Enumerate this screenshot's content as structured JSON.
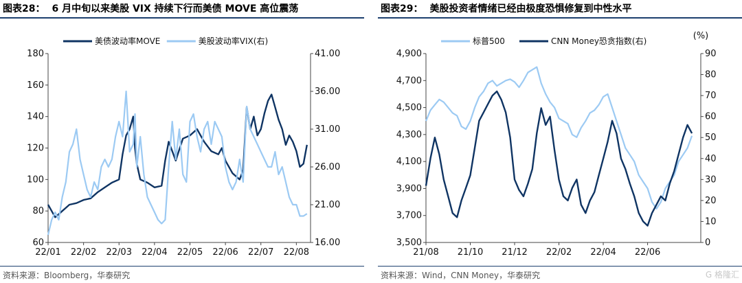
{
  "left": {
    "title_num": "图表28：",
    "title_text": "6 月中旬以来美股 VIX 持续下行而美债 MOVE 高位震荡",
    "source": "资料来源：Bloomberg，华泰研究",
    "chart_data": {
      "type": "line",
      "legend_position": "top",
      "grid": false,
      "xlabel": "",
      "ylabel": "",
      "x_ticks": [
        "22/01",
        "22/02",
        "22/03",
        "22/04",
        "22/05",
        "22/06",
        "22/07",
        "22/08"
      ],
      "left_y_ticks": [
        "60",
        "80",
        "100",
        "120",
        "140",
        "160",
        "180"
      ],
      "right_y_ticks": [
        "16.00",
        "21.00",
        "26.00",
        "31.00",
        "36.00",
        "41.00"
      ],
      "left_ylim": [
        60,
        180
      ],
      "right_ylim": [
        16,
        41
      ],
      "series": [
        {
          "name": "美债波动率MOVE",
          "axis": "left",
          "color": "#0f3463",
          "x": [
            0,
            0.1,
            0.2,
            0.3,
            0.4,
            0.5,
            0.6,
            0.8,
            1.0,
            1.2,
            1.4,
            1.6,
            1.8,
            2.0,
            2.1,
            2.2,
            2.3,
            2.4,
            2.45,
            2.5,
            2.6,
            2.8,
            3.0,
            3.2,
            3.3,
            3.4,
            3.5,
            3.6,
            3.8,
            4.0,
            4.2,
            4.4,
            4.6,
            4.8,
            4.9,
            5.0,
            5.2,
            5.4,
            5.5,
            5.6,
            5.7,
            5.8,
            5.9,
            6.0,
            6.1,
            6.2,
            6.3,
            6.4,
            6.5,
            6.6,
            6.7,
            6.8,
            6.9,
            7.0,
            7.1,
            7.2,
            7.3
          ],
          "values": [
            84,
            80,
            76,
            78,
            80,
            82,
            84,
            85,
            87,
            88,
            92,
            95,
            98,
            100,
            116,
            128,
            132,
            140,
            120,
            110,
            100,
            98,
            95,
            96,
            112,
            124,
            118,
            112,
            126,
            128,
            132,
            124,
            118,
            116,
            120,
            112,
            104,
            100,
            106,
            146,
            132,
            140,
            128,
            132,
            142,
            150,
            154,
            146,
            138,
            132,
            122,
            128,
            124,
            118,
            108,
            110,
            122
          ]
        },
        {
          "name": "美股波动率VIX(右)",
          "axis": "right",
          "color": "#9ccaf3",
          "x": [
            0,
            0.1,
            0.2,
            0.3,
            0.4,
            0.5,
            0.6,
            0.7,
            0.8,
            0.9,
            1.0,
            1.1,
            1.2,
            1.3,
            1.4,
            1.5,
            1.6,
            1.7,
            1.8,
            1.9,
            2.0,
            2.1,
            2.2,
            2.3,
            2.4,
            2.45,
            2.5,
            2.6,
            2.7,
            2.8,
            2.9,
            3.0,
            3.1,
            3.2,
            3.3,
            3.4,
            3.5,
            3.6,
            3.7,
            3.8,
            3.9,
            4.0,
            4.1,
            4.2,
            4.3,
            4.4,
            4.5,
            4.6,
            4.7,
            4.8,
            4.9,
            5.0,
            5.1,
            5.2,
            5.3,
            5.4,
            5.5,
            5.6,
            5.7,
            5.8,
            5.9,
            6.0,
            6.1,
            6.2,
            6.3,
            6.4,
            6.5,
            6.6,
            6.7,
            6.8,
            6.9,
            7.0,
            7.1,
            7.2,
            7.3
          ],
          "values": [
            17,
            19,
            20,
            19,
            22,
            24,
            28,
            29,
            31,
            27,
            25,
            23,
            22,
            24,
            23,
            26,
            27,
            26,
            27,
            30,
            32,
            30,
            36,
            28,
            29,
            33,
            26,
            30,
            25,
            22,
            21,
            20,
            19,
            18.5,
            19,
            26,
            32,
            27,
            31,
            25,
            24,
            32,
            33,
            30,
            28,
            31,
            32,
            29,
            32,
            31,
            30,
            26,
            24,
            23,
            24,
            27,
            24,
            34,
            31,
            30,
            29,
            28,
            27,
            26,
            26,
            28,
            25,
            26,
            24,
            22,
            21,
            21,
            19.5,
            19.5,
            19.8
          ]
        }
      ]
    }
  },
  "right": {
    "title_num": "图表29：",
    "title_text": "美股投资者情绪已经由极度恐惧修复到中性水平",
    "source": "资料来源：Wind，CNN Money，华泰研究",
    "right_unit": "(%)",
    "chart_data": {
      "type": "line",
      "legend_position": "top",
      "grid": false,
      "xlabel": "",
      "ylabel": "",
      "x_ticks": [
        "21/08",
        "21/10",
        "21/12",
        "22/02",
        "22/04",
        "22/06"
      ],
      "left_y_ticks": [
        "3,500",
        "3,700",
        "3,900",
        "4,100",
        "4,300",
        "4,500",
        "4,700",
        "4,900"
      ],
      "right_y_ticks": [
        "0",
        "10",
        "20",
        "30",
        "40",
        "50",
        "60",
        "70",
        "80",
        "90"
      ],
      "left_ylim": [
        3500,
        4900
      ],
      "right_ylim": [
        0,
        90
      ],
      "series": [
        {
          "name": "标普500",
          "axis": "left",
          "color": "#9ccaf3",
          "x": [
            0,
            0.2,
            0.4,
            0.6,
            0.8,
            1.0,
            1.2,
            1.4,
            1.6,
            1.8,
            2.0,
            2.2,
            2.4,
            2.6,
            2.8,
            3.0,
            3.2,
            3.4,
            3.6,
            3.8,
            4.0,
            4.2,
            4.4,
            4.6,
            4.8,
            5.0,
            5.2,
            5.4,
            5.6,
            5.8,
            6.0,
            6.2,
            6.4,
            6.6,
            6.8,
            7.0,
            7.2,
            7.4,
            7.6,
            7.8,
            8.0,
            8.2,
            8.4,
            8.6,
            8.8,
            9.0,
            9.2,
            9.4,
            9.6,
            9.8,
            10.0,
            10.2,
            10.4,
            10.6,
            10.8,
            11.0,
            11.2,
            11.4,
            11.6,
            11.8,
            12.0
          ],
          "values": [
            4400,
            4480,
            4520,
            4560,
            4540,
            4500,
            4460,
            4440,
            4360,
            4340,
            4400,
            4500,
            4580,
            4620,
            4680,
            4700,
            4660,
            4680,
            4700,
            4710,
            4690,
            4650,
            4700,
            4760,
            4780,
            4800,
            4680,
            4600,
            4540,
            4500,
            4420,
            4400,
            4380,
            4300,
            4280,
            4350,
            4400,
            4460,
            4480,
            4520,
            4580,
            4600,
            4500,
            4400,
            4300,
            4200,
            4150,
            4100,
            4000,
            3950,
            3900,
            3800,
            3750,
            3800,
            3900,
            3950,
            4000,
            4100,
            4150,
            4200,
            4290
          ]
        },
        {
          "name": "CNN Money恐贪指数(右)",
          "axis": "right",
          "color": "#0f3463",
          "x": [
            0,
            0.2,
            0.4,
            0.6,
            0.8,
            1.0,
            1.2,
            1.4,
            1.6,
            1.8,
            2.0,
            2.2,
            2.4,
            2.6,
            2.8,
            3.0,
            3.2,
            3.4,
            3.6,
            3.8,
            4.0,
            4.2,
            4.4,
            4.6,
            4.8,
            5.0,
            5.2,
            5.4,
            5.6,
            5.8,
            6.0,
            6.2,
            6.4,
            6.6,
            6.8,
            7.0,
            7.2,
            7.4,
            7.6,
            7.8,
            8.0,
            8.2,
            8.4,
            8.6,
            8.8,
            9.0,
            9.2,
            9.4,
            9.6,
            9.8,
            10.0,
            10.2,
            10.4,
            10.6,
            10.8,
            11.0,
            11.2,
            11.4,
            11.6,
            11.8,
            12.0
          ],
          "values": [
            27,
            40,
            50,
            42,
            30,
            22,
            14,
            12,
            20,
            26,
            32,
            45,
            58,
            62,
            66,
            70,
            72,
            68,
            62,
            50,
            30,
            25,
            22,
            28,
            35,
            52,
            64,
            56,
            60,
            44,
            30,
            22,
            20,
            26,
            30,
            18,
            14,
            20,
            24,
            32,
            40,
            48,
            58,
            52,
            40,
            35,
            28,
            22,
            14,
            10,
            8,
            14,
            18,
            22,
            20,
            28,
            34,
            42,
            50,
            56,
            52
          ]
        }
      ]
    }
  },
  "watermark": "格隆汇"
}
